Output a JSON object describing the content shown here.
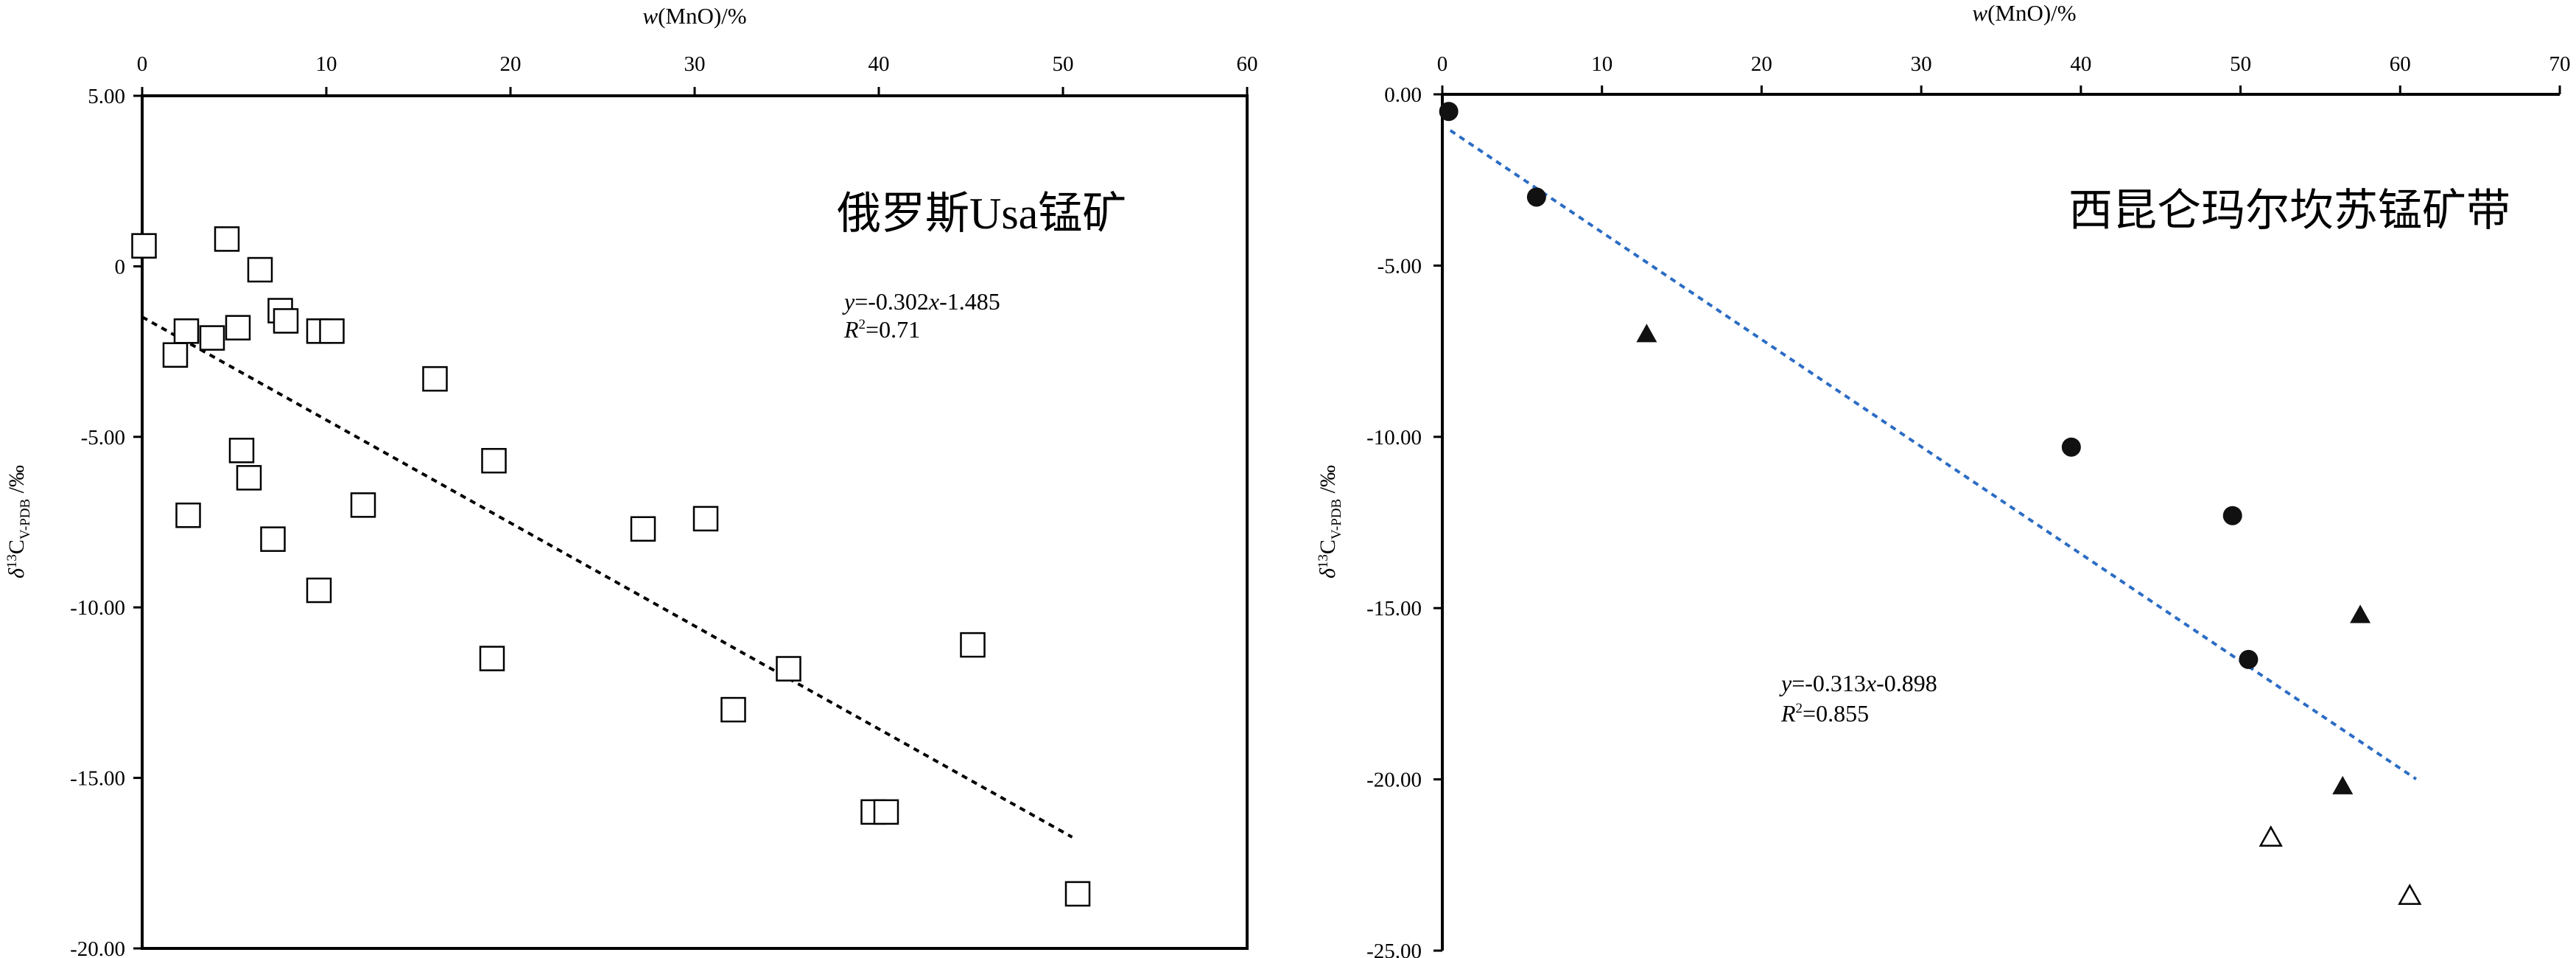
{
  "chart_data": [
    {
      "type": "scatter",
      "title": "",
      "annotation": "俄罗斯Usa锰矿",
      "xlabel": "w(MnO)/%",
      "ylabel": "δ13CV-PDB/‰",
      "xlim": [
        0,
        60
      ],
      "ylim": [
        -20,
        5
      ],
      "x_axis_position": "top",
      "x_ticks": [
        0,
        10,
        20,
        30,
        40,
        50,
        60
      ],
      "x_tick_labels": [
        "0",
        "10",
        "20",
        "30",
        "40",
        "50",
        "60"
      ],
      "y_ticks": [
        5,
        0,
        -5,
        -10,
        -15,
        -20
      ],
      "y_tick_labels": [
        "5.00",
        "0",
        "-5.00",
        "-10.00",
        "-15.00",
        "-20.00"
      ],
      "grid": false,
      "marker": "open-square",
      "points": [
        {
          "x": 0.1,
          "y": 0.6
        },
        {
          "x": 4.6,
          "y": 0.8
        },
        {
          "x": 6.4,
          "y": -0.1
        },
        {
          "x": 7.5,
          "y": -1.3
        },
        {
          "x": 7.8,
          "y": -1.6
        },
        {
          "x": 5.2,
          "y": -1.8
        },
        {
          "x": 2.4,
          "y": -1.9
        },
        {
          "x": 3.8,
          "y": -2.1
        },
        {
          "x": 1.8,
          "y": -2.6
        },
        {
          "x": 9.6,
          "y": -1.9
        },
        {
          "x": 10.3,
          "y": -1.9
        },
        {
          "x": 15.9,
          "y": -3.3
        },
        {
          "x": 5.4,
          "y": -5.4
        },
        {
          "x": 5.8,
          "y": -6.2
        },
        {
          "x": 19.1,
          "y": -5.7
        },
        {
          "x": 12.0,
          "y": -7.0
        },
        {
          "x": 2.5,
          "y": -7.3
        },
        {
          "x": 7.1,
          "y": -8.0
        },
        {
          "x": 27.2,
          "y": -7.7
        },
        {
          "x": 30.6,
          "y": -7.4
        },
        {
          "x": 9.6,
          "y": -9.5
        },
        {
          "x": 19.0,
          "y": -11.5
        },
        {
          "x": 35.1,
          "y": -11.8
        },
        {
          "x": 32.1,
          "y": -13.0
        },
        {
          "x": 45.1,
          "y": -11.1
        },
        {
          "x": 39.7,
          "y": -16.0
        },
        {
          "x": 40.4,
          "y": -16.0
        },
        {
          "x": 50.8,
          "y": -18.4
        }
      ],
      "fit": {
        "equation": "y=-0.302x-1.485",
        "r2": "R2=0.71",
        "slope": -0.302,
        "intercept": -1.485,
        "x_range": [
          0,
          50.5
        ],
        "style": "dotted",
        "color": "#000000"
      }
    },
    {
      "type": "scatter",
      "title": "",
      "annotation": "西昆仑玛尔坎苏锰矿带",
      "xlabel": "w(MnO)/%",
      "ylabel": "δ13CV-PDB/‰",
      "xlim": [
        0,
        70
      ],
      "ylim": [
        -25,
        0
      ],
      "x_axis_position": "top",
      "x_ticks": [
        0,
        10,
        20,
        30,
        40,
        50,
        60,
        70
      ],
      "x_tick_labels": [
        "0",
        "10",
        "20",
        "30",
        "40",
        "50",
        "60",
        "70"
      ],
      "y_ticks": [
        0,
        -5,
        -10,
        -15,
        -20,
        -25
      ],
      "y_tick_labels": [
        "0.00",
        "-5.00",
        "-10.00",
        "-15.00",
        "-20.00",
        "-25.00"
      ],
      "grid": false,
      "series": [
        {
          "marker": "filled-circle",
          "points": [
            {
              "x": 0.4,
              "y": -0.5
            },
            {
              "x": 5.9,
              "y": -3.0
            },
            {
              "x": 39.4,
              "y": -10.3
            },
            {
              "x": 49.5,
              "y": -12.3
            },
            {
              "x": 50.5,
              "y": -16.5
            }
          ]
        },
        {
          "marker": "filled-triangle",
          "points": [
            {
              "x": 12.8,
              "y": -7.0
            },
            {
              "x": 57.5,
              "y": -15.2
            },
            {
              "x": 56.4,
              "y": -20.2
            }
          ]
        },
        {
          "marker": "open-triangle",
          "points": [
            {
              "x": 51.9,
              "y": -21.7
            },
            {
              "x": 60.6,
              "y": -23.4
            }
          ]
        }
      ],
      "fit": {
        "equation": "y=-0.313x-0.898",
        "r2": "R2=0.855",
        "slope": -0.313,
        "intercept": -0.898,
        "x_range": [
          0.5,
          61
        ],
        "style": "dotted",
        "color": "#2b6cc4"
      }
    }
  ]
}
